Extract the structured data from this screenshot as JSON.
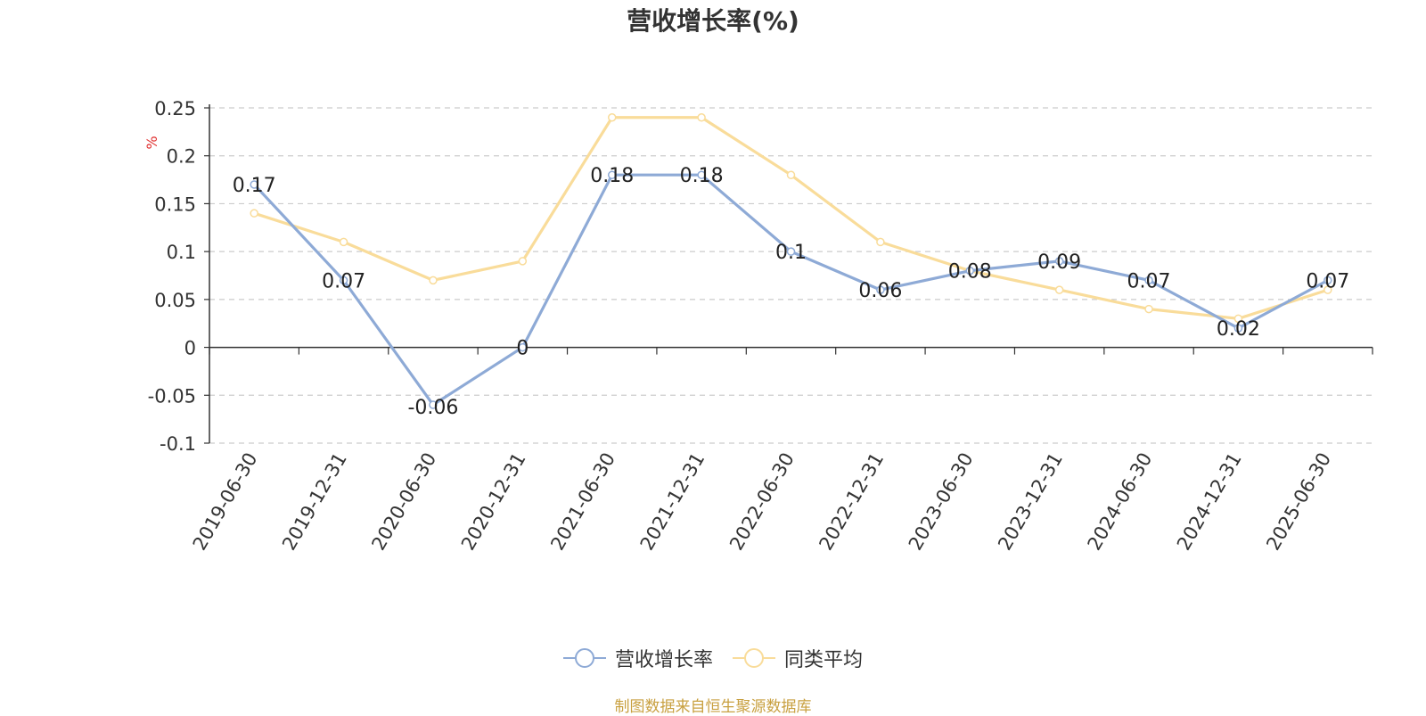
{
  "chart_data": {
    "type": "line",
    "title": "营收增长率(%)",
    "ylabel": "%",
    "categories": [
      "2019-06-30",
      "2019-12-31",
      "2020-06-30",
      "2020-12-31",
      "2021-06-30",
      "2021-12-31",
      "2022-06-30",
      "2022-12-31",
      "2023-06-30",
      "2023-12-31",
      "2024-06-30",
      "2024-12-31",
      "2025-06-30"
    ],
    "series": [
      {
        "name": "营收增长率",
        "color": "#8eaad6",
        "values": [
          0.17,
          0.07,
          -0.06,
          0,
          0.18,
          0.18,
          0.1,
          0.06,
          0.08,
          0.09,
          0.07,
          0.02,
          0.07
        ],
        "labels": [
          "0.17",
          "0.07",
          "-0.06",
          "0",
          "0.18",
          "0.18",
          "0.1",
          "0.06",
          "0.08",
          "0.09",
          "0.07",
          "0.02",
          "0.07"
        ]
      },
      {
        "name": "同类平均",
        "color": "#f9dc9a",
        "values": [
          0.14,
          0.11,
          0.07,
          0.09,
          0.24,
          0.24,
          0.18,
          0.11,
          0.08,
          0.06,
          0.04,
          0.03,
          0.06
        ]
      }
    ],
    "yticks": [
      "0.25",
      "0.2",
      "0.15",
      "0.1",
      "0.05",
      "0",
      "-0.05",
      "-0.1"
    ],
    "ylim": [
      -0.1,
      0.25
    ],
    "grid": true,
    "legend": "bottom-center"
  },
  "source_note": "制图数据来自恒生聚源数据库"
}
